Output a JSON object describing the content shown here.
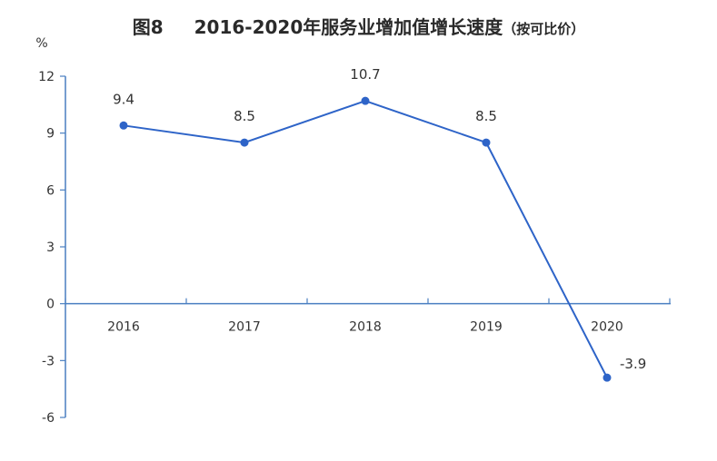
{
  "title": {
    "figure_label": "图8",
    "main": "2016-2020年服务业增加值增长速度",
    "sub": "（按可比价）"
  },
  "colors": {
    "series": "#2e64c8",
    "axis": "#4a7fc1",
    "text": "#333333"
  },
  "chart_data": {
    "type": "line",
    "title": "2016-2020年服务业增加值增长速度（按可比价）",
    "ylabel": "%",
    "xlabel": "",
    "categories": [
      "2016",
      "2017",
      "2018",
      "2019",
      "2020"
    ],
    "series": [
      {
        "values": [
          9.4,
          8.5,
          10.7,
          8.5,
          -3.9
        ],
        "color": "#2e64c8"
      }
    ],
    "data_labels": [
      "9.4",
      "8.5",
      "10.7",
      "8.5",
      "-3.9"
    ],
    "ylim": [
      -6,
      12
    ],
    "yticks": [
      12,
      9,
      6,
      3,
      0,
      -3,
      -6
    ],
    "ytick_labels": [
      "12",
      "9",
      "6",
      "3",
      "0",
      "-3",
      "-6"
    ],
    "grid": false,
    "legend": "none",
    "x_axis_at": 0
  }
}
